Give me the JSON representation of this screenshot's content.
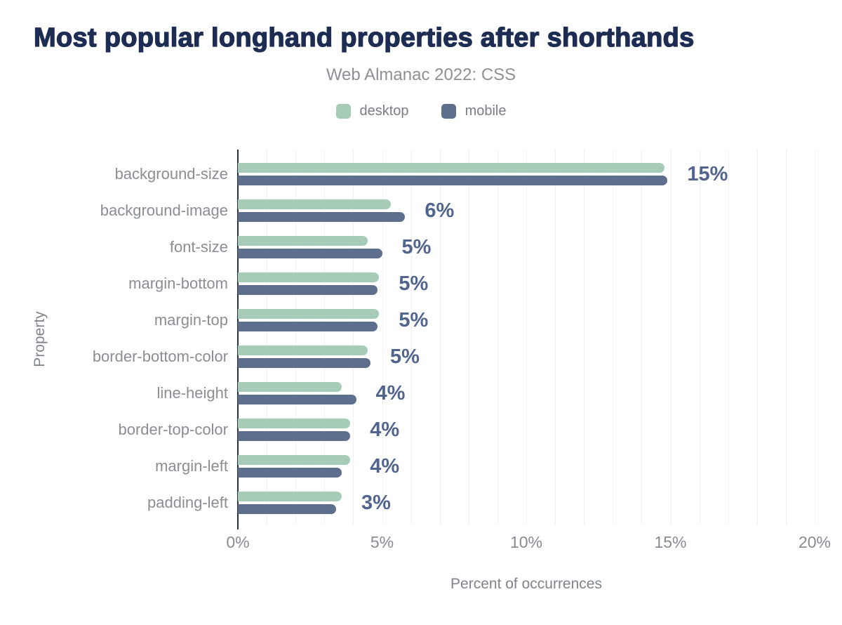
{
  "page": {
    "title": "Most popular longhand properties after shorthands",
    "subtitle": "Web Almanac 2022: CSS"
  },
  "legend": {
    "items": [
      {
        "label": "desktop",
        "color": "#a6ccb7"
      },
      {
        "label": "mobile",
        "color": "#5e6f8e"
      }
    ]
  },
  "chart_data": {
    "type": "bar",
    "orientation": "horizontal",
    "title": "Most popular longhand properties after shorthands",
    "subtitle": "Web Almanac 2022: CSS",
    "xlabel": "Percent of occurrences",
    "ylabel": "Property",
    "xlim": [
      0,
      20
    ],
    "x_ticks": [
      "0%",
      "5%",
      "10%",
      "15%",
      "20%"
    ],
    "x_tick_values": [
      0,
      5,
      10,
      15,
      20
    ],
    "grid": "vertical gridlines every 1%",
    "legend_position": "top",
    "categories": [
      "background-size",
      "background-image",
      "font-size",
      "margin-bottom",
      "margin-top",
      "border-bottom-color",
      "line-height",
      "border-top-color",
      "margin-left",
      "padding-left"
    ],
    "series": [
      {
        "name": "desktop",
        "color": "#a6ccb7",
        "values": [
          14.8,
          5.3,
          4.5,
          4.9,
          4.9,
          4.5,
          3.6,
          3.9,
          3.9,
          3.6
        ]
      },
      {
        "name": "mobile",
        "color": "#5e6f8e",
        "values": [
          14.9,
          5.8,
          5.0,
          4.85,
          4.85,
          4.6,
          4.1,
          3.9,
          3.6,
          3.4
        ]
      }
    ],
    "bar_labels": [
      "15%",
      "6%",
      "5%",
      "5%",
      "5%",
      "5%",
      "4%",
      "4%",
      "4%",
      "3%"
    ]
  },
  "colors": {
    "title": "#1d2c52",
    "subtitle": "#8c9196",
    "value_label": "#50648e",
    "category_label": "#8a8e93",
    "axis_line": "#273040",
    "gridline": "#f0f1f4",
    "background": "#ffffff"
  }
}
